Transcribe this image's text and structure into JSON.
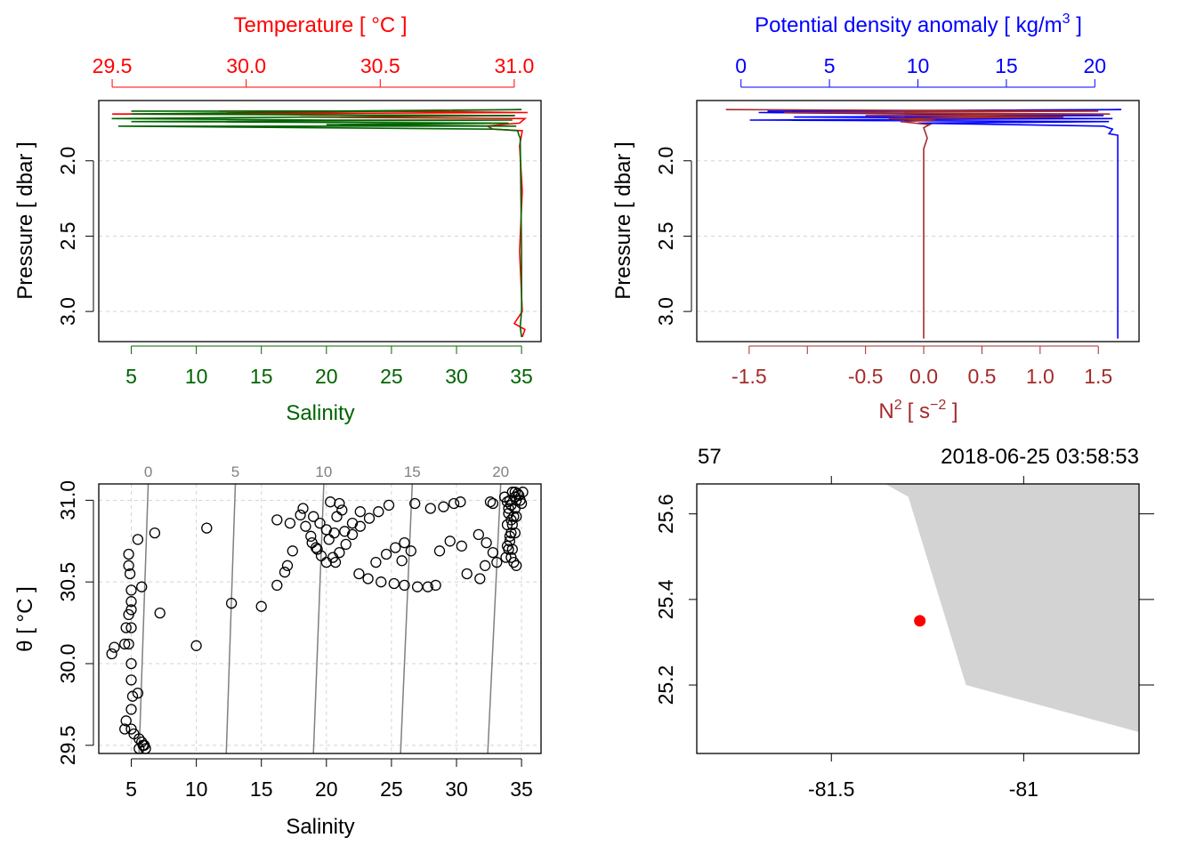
{
  "colors": {
    "temperature": "#ff0000",
    "salinity": "#006400",
    "density": "#0000ff",
    "n2": "#a52a2a",
    "axis": "#000000",
    "grid": "#d3d3d3",
    "isopycnal": "#808080",
    "land": "#d3d3d3",
    "station": "#ff0000"
  },
  "chart_data": [
    {
      "id": "ts_profile",
      "type": "line",
      "title": "",
      "ylabel": "Pressure [ dbar ]",
      "ylim": [
        3.2,
        1.6
      ],
      "yticks": [
        "2.0",
        "2.5",
        "3.0"
      ],
      "top_axis": {
        "label": "Temperature [ °C ]",
        "range": [
          29.45,
          31.1
        ],
        "ticks": [
          "29.5",
          "30.0",
          "30.5",
          "31.0"
        ]
      },
      "bottom_axis": {
        "label": "Salinity",
        "range": [
          2.5,
          36.5
        ],
        "ticks": [
          "5",
          "10",
          "15",
          "20",
          "25",
          "30",
          "35"
        ]
      },
      "series": [
        {
          "name": "Temperature",
          "axis": "top",
          "points": [
            [
              29.9,
              1.67
            ],
            [
              30.5,
              1.67
            ],
            [
              31.05,
              1.68
            ],
            [
              29.5,
              1.69
            ],
            [
              31.0,
              1.7
            ],
            [
              30.2,
              1.71
            ],
            [
              31.04,
              1.72
            ],
            [
              31.02,
              1.75
            ],
            [
              30.95,
              1.76
            ],
            [
              30.9,
              1.77
            ],
            [
              30.92,
              1.79
            ],
            [
              31.03,
              1.8
            ],
            [
              31.02,
              1.9
            ],
            [
              31.03,
              2.2
            ],
            [
              31.02,
              2.6
            ],
            [
              31.03,
              3.0
            ],
            [
              31.0,
              3.08
            ],
            [
              31.04,
              3.12
            ],
            [
              31.03,
              3.17
            ]
          ]
        },
        {
          "name": "Salinity",
          "axis": "bottom",
          "points": [
            [
              5.0,
              1.67
            ],
            [
              20.0,
              1.67
            ],
            [
              35.0,
              1.66
            ],
            [
              5.0,
              1.69
            ],
            [
              34.5,
              1.7
            ],
            [
              19.0,
              1.71
            ],
            [
              3.5,
              1.72
            ],
            [
              20.0,
              1.73
            ],
            [
              34.3,
              1.73
            ],
            [
              5.0,
              1.74
            ],
            [
              34.0,
              1.75
            ],
            [
              20.0,
              1.76
            ],
            [
              34.6,
              1.77
            ],
            [
              4.0,
              1.77
            ],
            [
              33.0,
              1.79
            ],
            [
              34.7,
              1.8
            ],
            [
              34.8,
              1.83
            ],
            [
              34.9,
              1.85
            ],
            [
              34.95,
              2.2
            ],
            [
              35.0,
              2.6
            ],
            [
              35.0,
              3.0
            ],
            [
              34.9,
              3.1
            ],
            [
              35.0,
              3.17
            ]
          ]
        }
      ]
    },
    {
      "id": "density_profile",
      "type": "line",
      "title": "",
      "ylabel": "Pressure [ dbar ]",
      "ylim": [
        3.2,
        1.6
      ],
      "yticks": [
        "2.0",
        "2.5",
        "3.0"
      ],
      "top_axis": {
        "label": "Potential density anomaly [ kg/m",
        "label_superscript": "3",
        "label_suffix": " ]",
        "range": [
          -2.5,
          22.5
        ],
        "ticks": [
          "0",
          "5",
          "10",
          "15",
          "20"
        ]
      },
      "bottom_axis": {
        "label": "N",
        "label_superscript": "2",
        "label_units": "[ s",
        "label_units_superscript": "−2",
        "label_suffix": " ]",
        "range": [
          -1.95,
          1.85
        ],
        "ticks": [
          "-1.5",
          "-1.0",
          "-0.5",
          "0.0",
          "0.5",
          "1.0",
          "1.5"
        ],
        "tick_labels_shown": [
          "-1.5",
          "-0.5",
          "0.0",
          "0.5",
          "1.0",
          "1.5"
        ]
      },
      "series": [
        {
          "name": "Potential density anomaly",
          "axis": "top",
          "points": [
            [
              1.5,
              1.67
            ],
            [
              21.5,
              1.66
            ],
            [
              1.0,
              1.68
            ],
            [
              20.5,
              1.7
            ],
            [
              3.0,
              1.71
            ],
            [
              21.0,
              1.72
            ],
            [
              0.5,
              1.73
            ],
            [
              20.8,
              1.74
            ],
            [
              10.0,
              1.75
            ],
            [
              20.5,
              1.77
            ],
            [
              21.0,
              1.79
            ],
            [
              20.8,
              1.82
            ],
            [
              21.3,
              1.83
            ],
            [
              21.3,
              2.5
            ],
            [
              21.3,
              3.18
            ]
          ]
        },
        {
          "name": "N2",
          "axis": "bottom",
          "points": [
            [
              -1.7,
              1.66
            ],
            [
              1.5,
              1.67
            ],
            [
              -1.2,
              1.68
            ],
            [
              1.6,
              1.69
            ],
            [
              -0.5,
              1.7
            ],
            [
              1.2,
              1.71
            ],
            [
              -0.3,
              1.72
            ],
            [
              0.1,
              1.73
            ],
            [
              -0.2,
              1.74
            ],
            [
              0.05,
              1.76
            ],
            [
              0.0,
              1.78
            ],
            [
              0.03,
              1.85
            ],
            [
              0.0,
              1.92
            ],
            [
              0.0,
              2.5
            ],
            [
              0.0,
              3.18
            ]
          ]
        }
      ]
    },
    {
      "id": "ts_diagram",
      "type": "scatter",
      "title": "",
      "xlabel": "Salinity",
      "ylabel": "θ [ °C ]",
      "xlim": [
        2.5,
        36.5
      ],
      "ylim": [
        29.45,
        31.1
      ],
      "xticks": [
        "5",
        "10",
        "15",
        "20",
        "25",
        "30",
        "35"
      ],
      "yticks": [
        "29.5",
        "30.0",
        "30.5",
        "31.0"
      ],
      "isopycnals": [
        {
          "label": "0",
          "from": [
            5.6,
            29.45
          ],
          "to": [
            6.3,
            31.1
          ]
        },
        {
          "label": "5",
          "from": [
            12.3,
            29.45
          ],
          "to": [
            13.0,
            31.1
          ]
        },
        {
          "label": "10",
          "from": [
            19.0,
            29.45
          ],
          "to": [
            19.8,
            31.1
          ]
        },
        {
          "label": "15",
          "from": [
            25.7,
            29.45
          ],
          "to": [
            26.6,
            31.1
          ]
        },
        {
          "label": "20",
          "from": [
            32.4,
            29.45
          ],
          "to": [
            33.4,
            31.1
          ]
        }
      ],
      "points": [
        [
          5.5,
          30.76
        ],
        [
          4.8,
          30.67
        ],
        [
          4.8,
          30.6
        ],
        [
          4.9,
          30.55
        ],
        [
          5.0,
          30.45
        ],
        [
          5.0,
          30.38
        ],
        [
          5.0,
          30.33
        ],
        [
          4.8,
          30.3
        ],
        [
          5.0,
          30.22
        ],
        [
          4.6,
          30.22
        ],
        [
          4.8,
          30.12
        ],
        [
          4.5,
          30.12
        ],
        [
          3.7,
          30.1
        ],
        [
          3.5,
          30.06
        ],
        [
          5.0,
          30.0
        ],
        [
          5.0,
          29.9
        ],
        [
          5.1,
          29.8
        ],
        [
          5.5,
          29.82
        ],
        [
          5.0,
          29.72
        ],
        [
          4.6,
          29.65
        ],
        [
          4.5,
          29.6
        ],
        [
          5.0,
          29.6
        ],
        [
          5.2,
          29.57
        ],
        [
          5.6,
          29.54
        ],
        [
          5.8,
          29.52
        ],
        [
          6.0,
          29.5
        ],
        [
          6.1,
          29.48
        ],
        [
          5.6,
          29.48
        ],
        [
          5.9,
          29.5
        ],
        [
          6.8,
          30.8
        ],
        [
          10.8,
          30.83
        ],
        [
          5.8,
          30.47
        ],
        [
          7.2,
          30.31
        ],
        [
          10.0,
          30.11
        ],
        [
          12.7,
          30.37
        ],
        [
          15.0,
          30.35
        ],
        [
          16.2,
          30.48
        ],
        [
          16.8,
          30.56
        ],
        [
          17.0,
          30.6
        ],
        [
          17.4,
          30.69
        ],
        [
          16.2,
          30.88
        ],
        [
          17.2,
          30.86
        ],
        [
          18.0,
          30.91
        ],
        [
          18.4,
          30.84
        ],
        [
          18.8,
          30.78
        ],
        [
          19.2,
          30.71
        ],
        [
          19.6,
          30.66
        ],
        [
          20.0,
          30.62
        ],
        [
          20.5,
          30.65
        ],
        [
          21.0,
          30.68
        ],
        [
          21.5,
          30.73
        ],
        [
          22.0,
          30.79
        ],
        [
          22.6,
          30.84
        ],
        [
          23.3,
          30.89
        ],
        [
          24.0,
          30.93
        ],
        [
          24.8,
          30.97
        ],
        [
          18.2,
          30.95
        ],
        [
          19.0,
          30.9
        ],
        [
          19.5,
          30.86
        ],
        [
          20.0,
          30.82
        ],
        [
          20.6,
          30.8
        ],
        [
          21.4,
          30.81
        ],
        [
          22.0,
          30.86
        ],
        [
          22.6,
          30.93
        ],
        [
          18.9,
          30.74
        ],
        [
          19.3,
          30.7
        ],
        [
          20.2,
          30.76
        ],
        [
          20.8,
          30.9
        ],
        [
          21.2,
          30.94
        ],
        [
          21.0,
          30.98
        ],
        [
          20.3,
          30.99
        ],
        [
          20.7,
          30.62
        ],
        [
          22.5,
          30.55
        ],
        [
          23.2,
          30.52
        ],
        [
          24.2,
          30.5
        ],
        [
          25.2,
          30.49
        ],
        [
          26.0,
          30.48
        ],
        [
          27.0,
          30.47
        ],
        [
          27.8,
          30.47
        ],
        [
          23.8,
          30.62
        ],
        [
          24.6,
          30.67
        ],
        [
          25.3,
          30.71
        ],
        [
          26.0,
          30.74
        ],
        [
          26.5,
          30.69
        ],
        [
          25.8,
          30.63
        ],
        [
          26.8,
          30.98
        ],
        [
          28.0,
          30.95
        ],
        [
          29.0,
          30.96
        ],
        [
          29.8,
          30.98
        ],
        [
          30.3,
          30.99
        ],
        [
          29.5,
          30.75
        ],
        [
          28.7,
          30.69
        ],
        [
          28.4,
          30.48
        ],
        [
          30.4,
          30.72
        ],
        [
          30.8,
          30.55
        ],
        [
          31.7,
          30.79
        ],
        [
          32.3,
          30.74
        ],
        [
          32.8,
          30.68
        ],
        [
          33.1,
          30.62
        ],
        [
          32.2,
          30.6
        ],
        [
          31.8,
          30.52
        ],
        [
          32.6,
          30.99
        ],
        [
          32.8,
          30.98
        ],
        [
          33.8,
          30.65
        ],
        [
          34.0,
          30.7
        ],
        [
          34.1,
          30.75
        ],
        [
          34.2,
          30.8
        ],
        [
          34.3,
          30.85
        ],
        [
          34.4,
          30.9
        ],
        [
          34.5,
          30.95
        ],
        [
          34.6,
          31.0
        ],
        [
          34.7,
          31.04
        ],
        [
          34.8,
          31.03
        ],
        [
          34.9,
          31.0
        ],
        [
          35.0,
          30.98
        ],
        [
          33.9,
          30.85
        ],
        [
          34.0,
          30.95
        ],
        [
          34.1,
          31.0
        ],
        [
          34.3,
          31.05
        ],
        [
          34.5,
          31.05
        ],
        [
          34.6,
          30.6
        ],
        [
          34.4,
          30.62
        ],
        [
          34.2,
          30.65
        ],
        [
          33.9,
          30.72
        ],
        [
          34.1,
          30.78
        ],
        [
          34.2,
          30.88
        ],
        [
          34.0,
          30.92
        ],
        [
          34.3,
          30.7
        ],
        [
          34.5,
          30.8
        ],
        [
          34.6,
          30.9
        ],
        [
          34.5,
          31.02
        ],
        [
          33.7,
          31.02
        ],
        [
          33.9,
          30.99
        ],
        [
          34.2,
          30.97
        ],
        [
          35.1,
          31.05
        ]
      ]
    },
    {
      "id": "station_map",
      "type": "map",
      "title": "",
      "station_label": "57",
      "timestamp": "2018-06-25 03:58:53",
      "xlim": [
        -81.85,
        -80.7
      ],
      "ylim": [
        25.04,
        25.67
      ],
      "xticks": [
        "-81.5",
        "-81"
      ],
      "yticks": [
        "25.2",
        "25.4",
        "25.6"
      ],
      "coastline": [
        [
          -81.36,
          25.67
        ],
        [
          -81.3,
          25.64
        ],
        [
          -81.15,
          25.2
        ],
        [
          -80.7,
          25.09
        ],
        [
          -80.7,
          25.67
        ]
      ],
      "station": {
        "lon": -81.27,
        "lat": 25.35
      }
    }
  ]
}
